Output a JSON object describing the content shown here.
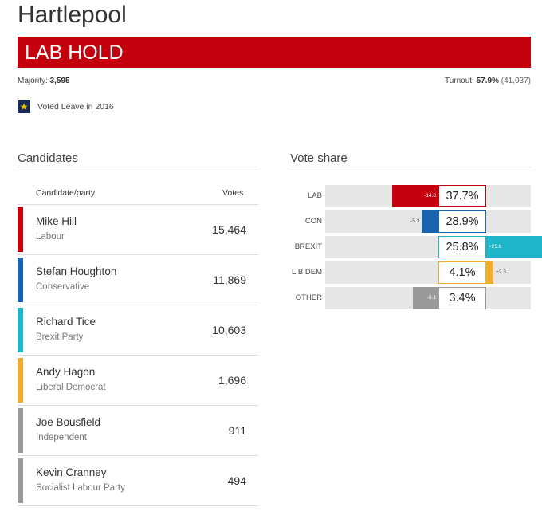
{
  "constituency": "Hartlepool",
  "result": {
    "text": "LAB HOLD",
    "color": "#c4000d"
  },
  "majority": {
    "label": "Majority:",
    "value": "3,595"
  },
  "turnout": {
    "label": "Turnout:",
    "percent": "57.9%",
    "count": "(41,037)"
  },
  "brexit_note": {
    "icon": "star-icon",
    "text": "Voted Leave in 2016"
  },
  "candidates": {
    "title": "Candidates",
    "col_candidate": "Candidate/party",
    "col_votes": "Votes",
    "rows": [
      {
        "name": "Mike Hill",
        "party": "Labour",
        "votes": "15,464",
        "color": "#c4000d"
      },
      {
        "name": "Stefan Houghton",
        "party": "Conservative",
        "votes": "11,869",
        "color": "#1a63b0"
      },
      {
        "name": "Richard Tice",
        "party": "Brexit Party",
        "votes": "10,603",
        "color": "#1fb5c8"
      },
      {
        "name": "Andy Hagon",
        "party": "Liberal Democrat",
        "votes": "1,696",
        "color": "#f2ac2e"
      },
      {
        "name": "Joe Bousfield",
        "party": "Independent",
        "votes": "911",
        "color": "#999999"
      },
      {
        "name": "Kevin Cranney",
        "party": "Socialist Labour Party",
        "votes": "494",
        "color": "#999999"
      }
    ]
  },
  "vote_share": {
    "title": "Vote share",
    "rows": [
      {
        "party": "LAB",
        "share": "37.7%",
        "change": -14.8,
        "change_label": "-14.8",
        "color": "#c4000d"
      },
      {
        "party": "CON",
        "share": "28.9%",
        "change": -5.3,
        "change_label": "-5.3",
        "color": "#1a63b0"
      },
      {
        "party": "BREXIT",
        "share": "25.8%",
        "change": 25.8,
        "change_label": "+25.8",
        "color": "#1fb5c8"
      },
      {
        "party": "LIB DEM",
        "share": "4.1%",
        "change": 2.3,
        "change_label": "+2.3",
        "color": "#f2ac2e"
      },
      {
        "party": "OTHER",
        "share": "3.4%",
        "change": -8.1,
        "change_label": "-8.1",
        "color": "#999999"
      }
    ]
  }
}
